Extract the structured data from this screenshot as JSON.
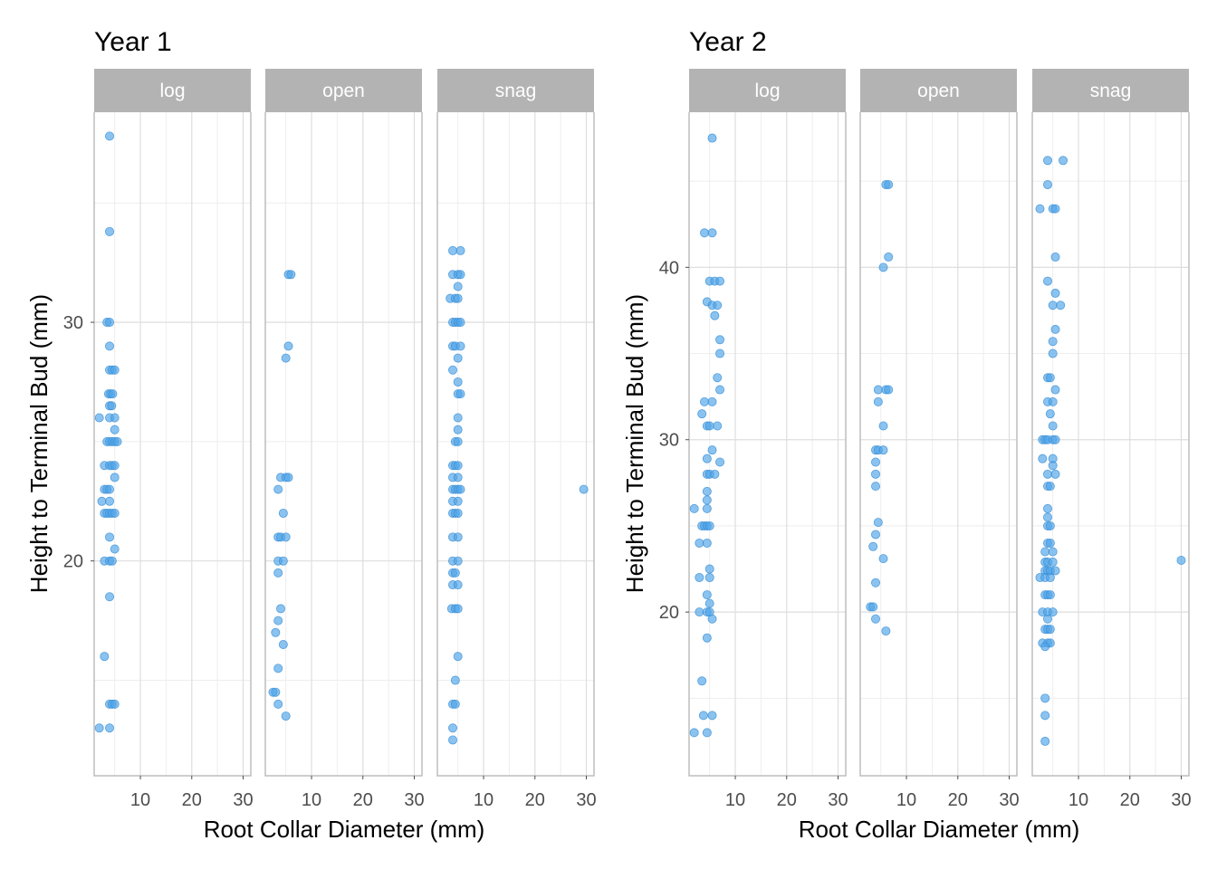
{
  "figure": {
    "background": "#ffffff"
  },
  "style": {
    "point_color": "#4da3e8",
    "point_stroke": "#3a8fd4",
    "point_opacity": 0.65,
    "strip_fill": "#b3b3b3",
    "strip_text": "#ffffff",
    "grid_major": "#dedede",
    "grid_minor": "#eeeeee",
    "panel_border": "#bdbdbd",
    "text_color": "#000000",
    "tick_color": "#4d4d4d"
  },
  "chart_data": [
    {
      "type": "scatter",
      "title": "Year 1",
      "xlabel": "Root Collar Diameter (mm)",
      "ylabel": "Height to Terminal Bud (mm)",
      "xlim": [
        1,
        31.5
      ],
      "ylim": [
        11,
        38.8
      ],
      "xticks": [
        10,
        20,
        30
      ],
      "yticks": [
        20,
        30
      ],
      "grid": true,
      "facets": [
        {
          "label": "log",
          "points": [
            [
              4.0,
              37.8
            ],
            [
              4.0,
              33.8
            ],
            [
              3.5,
              30
            ],
            [
              4.0,
              30
            ],
            [
              4.0,
              29
            ],
            [
              4.0,
              28
            ],
            [
              4.5,
              28
            ],
            [
              5.0,
              28
            ],
            [
              3.8,
              27
            ],
            [
              4.2,
              27
            ],
            [
              4.6,
              27
            ],
            [
              4.0,
              26.5
            ],
            [
              4.4,
              26.5
            ],
            [
              2.0,
              26
            ],
            [
              4.0,
              26
            ],
            [
              5.0,
              26
            ],
            [
              5.0,
              25.5
            ],
            [
              3.5,
              25
            ],
            [
              4.0,
              25
            ],
            [
              4.5,
              25
            ],
            [
              5.0,
              25
            ],
            [
              5.5,
              25
            ],
            [
              3.0,
              24
            ],
            [
              4.0,
              24
            ],
            [
              4.5,
              24
            ],
            [
              5.0,
              24
            ],
            [
              5.0,
              23.5
            ],
            [
              3.0,
              23
            ],
            [
              3.5,
              23
            ],
            [
              4.0,
              23
            ],
            [
              2.5,
              22.5
            ],
            [
              4.0,
              22.5
            ],
            [
              3.0,
              22
            ],
            [
              3.5,
              22
            ],
            [
              4.0,
              22
            ],
            [
              4.5,
              22
            ],
            [
              5.0,
              22
            ],
            [
              4.0,
              21
            ],
            [
              5.0,
              20.5
            ],
            [
              3.0,
              20
            ],
            [
              4.0,
              20
            ],
            [
              4.5,
              20
            ],
            [
              4.0,
              18.5
            ],
            [
              3.0,
              16
            ],
            [
              4.0,
              14
            ],
            [
              4.5,
              14
            ],
            [
              5.0,
              14
            ],
            [
              2.0,
              13
            ],
            [
              4.0,
              13
            ]
          ]
        },
        {
          "label": "open",
          "points": [
            [
              5.5,
              32
            ],
            [
              6.0,
              32
            ],
            [
              5.5,
              29
            ],
            [
              5.0,
              28.5
            ],
            [
              4.0,
              23.5
            ],
            [
              5.0,
              23.5
            ],
            [
              5.5,
              23.5
            ],
            [
              3.5,
              23
            ],
            [
              4.5,
              22
            ],
            [
              3.5,
              21
            ],
            [
              4.0,
              21
            ],
            [
              5.0,
              21
            ],
            [
              3.5,
              20
            ],
            [
              4.5,
              20
            ],
            [
              3.5,
              19.5
            ],
            [
              4.0,
              18
            ],
            [
              3.5,
              17.5
            ],
            [
              3.0,
              17
            ],
            [
              4.5,
              16.5
            ],
            [
              3.5,
              15.5
            ],
            [
              2.5,
              14.5
            ],
            [
              3.0,
              14.5
            ],
            [
              3.5,
              14
            ],
            [
              5.0,
              13.5
            ]
          ]
        },
        {
          "label": "snag",
          "points": [
            [
              4.0,
              33
            ],
            [
              5.5,
              33
            ],
            [
              4.0,
              32
            ],
            [
              5.0,
              32
            ],
            [
              5.5,
              32
            ],
            [
              5.0,
              31.5
            ],
            [
              3.5,
              31
            ],
            [
              4.5,
              31
            ],
            [
              5.0,
              31
            ],
            [
              4.0,
              30
            ],
            [
              4.5,
              30
            ],
            [
              5.0,
              30
            ],
            [
              5.5,
              30
            ],
            [
              4.0,
              29
            ],
            [
              4.5,
              29
            ],
            [
              5.5,
              29
            ],
            [
              5.0,
              28.5
            ],
            [
              4.0,
              28
            ],
            [
              5.0,
              27.5
            ],
            [
              5.0,
              27
            ],
            [
              5.5,
              27
            ],
            [
              5.0,
              26
            ],
            [
              5.0,
              25.5
            ],
            [
              4.5,
              25
            ],
            [
              5.0,
              25
            ],
            [
              4.0,
              24
            ],
            [
              4.5,
              24
            ],
            [
              5.0,
              24
            ],
            [
              4.0,
              23.5
            ],
            [
              5.0,
              23.5
            ],
            [
              4.0,
              23
            ],
            [
              4.5,
              23
            ],
            [
              5.0,
              23
            ],
            [
              5.5,
              23
            ],
            [
              29.5,
              23
            ],
            [
              4.0,
              22.5
            ],
            [
              5.0,
              22.5
            ],
            [
              4.0,
              22
            ],
            [
              4.5,
              22
            ],
            [
              5.0,
              22
            ],
            [
              4.0,
              21
            ],
            [
              5.0,
              21
            ],
            [
              4.0,
              20
            ],
            [
              5.0,
              20
            ],
            [
              4.0,
              19.5
            ],
            [
              4.5,
              19.5
            ],
            [
              4.0,
              19
            ],
            [
              5.0,
              19
            ],
            [
              3.8,
              18
            ],
            [
              4.5,
              18
            ],
            [
              5.0,
              18
            ],
            [
              5.0,
              16
            ],
            [
              4.5,
              15
            ],
            [
              4.0,
              14
            ],
            [
              4.5,
              14
            ],
            [
              4.0,
              13
            ],
            [
              4.0,
              12.5
            ]
          ]
        }
      ]
    },
    {
      "type": "scatter",
      "title": "Year 2",
      "xlabel": "Root Collar Diameter (mm)",
      "ylabel": "Height to Terminal Bud (mm)",
      "xlim": [
        1,
        31.5
      ],
      "ylim": [
        10.5,
        49
      ],
      "xticks": [
        10,
        20,
        30
      ],
      "yticks": [
        20,
        30,
        40
      ],
      "grid": true,
      "facets": [
        {
          "label": "log",
          "points": [
            [
              5.5,
              47.5
            ],
            [
              4.0,
              42
            ],
            [
              5.5,
              42
            ],
            [
              5.0,
              39.2
            ],
            [
              6.0,
              39.2
            ],
            [
              7.0,
              39.2
            ],
            [
              4.5,
              38
            ],
            [
              5.5,
              37.8
            ],
            [
              6.5,
              37.8
            ],
            [
              6.0,
              37.2
            ],
            [
              7.0,
              35.8
            ],
            [
              7.0,
              35
            ],
            [
              6.5,
              33.6
            ],
            [
              7.0,
              32.9
            ],
            [
              4.0,
              32.2
            ],
            [
              5.5,
              32.2
            ],
            [
              3.5,
              31.5
            ],
            [
              4.5,
              30.8
            ],
            [
              5.0,
              30.8
            ],
            [
              6.5,
              30.8
            ],
            [
              5.5,
              29.4
            ],
            [
              7.0,
              28.7
            ],
            [
              4.5,
              28.9
            ],
            [
              4.5,
              28
            ],
            [
              5.0,
              28
            ],
            [
              6.0,
              28
            ],
            [
              4.5,
              27
            ],
            [
              4.5,
              26.5
            ],
            [
              2.0,
              26
            ],
            [
              4.5,
              26
            ],
            [
              3.5,
              25
            ],
            [
              4.0,
              25
            ],
            [
              4.5,
              25
            ],
            [
              5.0,
              25
            ],
            [
              3.0,
              24
            ],
            [
              4.5,
              24
            ],
            [
              5.0,
              22.5
            ],
            [
              3.0,
              22
            ],
            [
              5.0,
              22
            ],
            [
              4.5,
              21
            ],
            [
              5.0,
              20.5
            ],
            [
              3.0,
              20
            ],
            [
              4.5,
              20
            ],
            [
              5.0,
              20
            ],
            [
              5.5,
              19.6
            ],
            [
              4.5,
              18.5
            ],
            [
              3.5,
              16
            ],
            [
              3.8,
              14
            ],
            [
              5.5,
              14
            ],
            [
              2.0,
              13
            ],
            [
              4.5,
              13
            ]
          ]
        },
        {
          "label": "open",
          "points": [
            [
              6.0,
              44.8
            ],
            [
              6.5,
              44.8
            ],
            [
              6.5,
              40.6
            ],
            [
              5.5,
              40
            ],
            [
              4.5,
              32.9
            ],
            [
              6.0,
              32.9
            ],
            [
              6.5,
              32.9
            ],
            [
              4.5,
              32.2
            ],
            [
              5.5,
              30.8
            ],
            [
              4.0,
              29.4
            ],
            [
              4.5,
              29.4
            ],
            [
              5.5,
              29.4
            ],
            [
              4.0,
              28.7
            ],
            [
              4.0,
              28
            ],
            [
              4.0,
              27.3
            ],
            [
              4.5,
              25.2
            ],
            [
              4.0,
              24.5
            ],
            [
              3.5,
              23.8
            ],
            [
              5.5,
              23.1
            ],
            [
              4.0,
              21.7
            ],
            [
              3.0,
              20.3
            ],
            [
              3.5,
              20.3
            ],
            [
              4.0,
              19.6
            ],
            [
              6.0,
              18.9
            ]
          ]
        },
        {
          "label": "snag",
          "points": [
            [
              4.0,
              46.2
            ],
            [
              7.0,
              46.2
            ],
            [
              4.0,
              44.8
            ],
            [
              2.5,
              43.4
            ],
            [
              5.0,
              43.4
            ],
            [
              5.5,
              43.4
            ],
            [
              5.5,
              40.6
            ],
            [
              4.0,
              39.2
            ],
            [
              5.5,
              38.5
            ],
            [
              5.0,
              37.8
            ],
            [
              6.5,
              37.8
            ],
            [
              5.5,
              36.4
            ],
            [
              5.0,
              35.7
            ],
            [
              5.0,
              35
            ],
            [
              4.0,
              33.6
            ],
            [
              4.5,
              33.6
            ],
            [
              4.0,
              32.2
            ],
            [
              5.0,
              32.2
            ],
            [
              5.5,
              32.9
            ],
            [
              4.5,
              31.5
            ],
            [
              5.0,
              30.8
            ],
            [
              3.0,
              30
            ],
            [
              3.5,
              30
            ],
            [
              4.0,
              30
            ],
            [
              5.0,
              30
            ],
            [
              5.5,
              30
            ],
            [
              3.0,
              28.9
            ],
            [
              5.0,
              28.9
            ],
            [
              4.0,
              28
            ],
            [
              5.0,
              28.5
            ],
            [
              5.5,
              28
            ],
            [
              4.0,
              27.3
            ],
            [
              4.5,
              27.3
            ],
            [
              4.0,
              26
            ],
            [
              4.0,
              25.5
            ],
            [
              4.0,
              25
            ],
            [
              4.5,
              25
            ],
            [
              4.0,
              24
            ],
            [
              4.5,
              24
            ],
            [
              3.5,
              23.5
            ],
            [
              5.0,
              23.5
            ],
            [
              3.5,
              22.9
            ],
            [
              4.0,
              22.9
            ],
            [
              5.0,
              22.9
            ],
            [
              30.0,
              23.0
            ],
            [
              3.5,
              22.4
            ],
            [
              4.0,
              22.4
            ],
            [
              4.5,
              22.4
            ],
            [
              5.5,
              22.4
            ],
            [
              2.5,
              22
            ],
            [
              3.5,
              22
            ],
            [
              4.5,
              22
            ],
            [
              3.5,
              21
            ],
            [
              4.0,
              21
            ],
            [
              4.5,
              21
            ],
            [
              3.0,
              20
            ],
            [
              4.0,
              20
            ],
            [
              5.0,
              20
            ],
            [
              4.0,
              19.6
            ],
            [
              3.5,
              19
            ],
            [
              4.0,
              19
            ],
            [
              4.5,
              19
            ],
            [
              3.0,
              18.2
            ],
            [
              4.0,
              18.2
            ],
            [
              4.5,
              18.2
            ],
            [
              3.5,
              18
            ],
            [
              3.5,
              15
            ],
            [
              3.5,
              14
            ],
            [
              3.5,
              12.5
            ]
          ]
        }
      ]
    }
  ]
}
